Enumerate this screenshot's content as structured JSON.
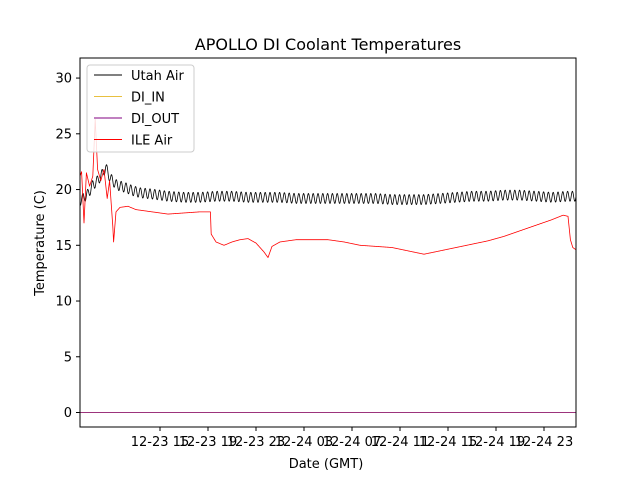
{
  "chart_data": {
    "type": "line",
    "title": "APOLLO DI Coolant Temperatures",
    "xlabel": "Date (GMT)",
    "ylabel": "Temperature (C)",
    "xlim": [
      9.5,
      40.5
    ],
    "ylim": [
      -1.3,
      31.8
    ],
    "x_units": "hours since 12-23 00:00 GMT",
    "x_ticks": [
      {
        "value": 14.5,
        "label": "12-23 15"
      },
      {
        "value": 17.5,
        "label": "12-23 19"
      },
      {
        "value": 20.5,
        "label": "12-23 23"
      },
      {
        "value": 23.5,
        "label": "12-24 03"
      },
      {
        "value": 26.5,
        "label": "12-24 07"
      },
      {
        "value": 29.5,
        "label": "12-24 11"
      },
      {
        "value": 32.5,
        "label": "12-24 15"
      },
      {
        "value": 35.5,
        "label": "12-24 19"
      },
      {
        "value": 38.5,
        "label": "12-24 23"
      }
    ],
    "y_ticks": [
      0,
      5,
      10,
      15,
      20,
      25,
      30
    ],
    "legend": {
      "position": "top-left"
    },
    "series": [
      {
        "name": "Utah Air",
        "color": "#000000",
        "oscillation": {
          "amplitude": 0.45,
          "period_hours": 0.3
        },
        "points": [
          [
            9.5,
            19.0
          ],
          [
            10.0,
            19.6
          ],
          [
            10.3,
            20.4
          ],
          [
            10.6,
            20.8
          ],
          [
            10.9,
            21.4
          ],
          [
            11.1,
            22.0
          ],
          [
            11.4,
            21.0
          ],
          [
            11.8,
            20.4
          ],
          [
            12.3,
            20.2
          ],
          [
            12.8,
            19.9
          ],
          [
            13.3,
            19.7
          ],
          [
            14.0,
            19.6
          ],
          [
            15.0,
            19.4
          ],
          [
            16.0,
            19.3
          ],
          [
            17.0,
            19.3
          ],
          [
            18.0,
            19.4
          ],
          [
            19.0,
            19.4
          ],
          [
            20.0,
            19.3
          ],
          [
            21.0,
            19.3
          ],
          [
            22.0,
            19.3
          ],
          [
            23.0,
            19.2
          ],
          [
            24.0,
            19.2
          ],
          [
            25.0,
            19.2
          ],
          [
            26.0,
            19.2
          ],
          [
            27.0,
            19.2
          ],
          [
            28.0,
            19.2
          ],
          [
            29.0,
            19.1
          ],
          [
            30.0,
            19.1
          ],
          [
            31.0,
            19.1
          ],
          [
            32.0,
            19.2
          ],
          [
            33.0,
            19.3
          ],
          [
            34.0,
            19.4
          ],
          [
            35.0,
            19.4
          ],
          [
            36.0,
            19.5
          ],
          [
            37.0,
            19.5
          ],
          [
            38.0,
            19.4
          ],
          [
            39.0,
            19.3
          ],
          [
            40.0,
            19.4
          ],
          [
            40.5,
            19.4
          ]
        ]
      },
      {
        "name": "DI_IN",
        "color": "#e8c040",
        "points": [
          [
            9.5,
            0.0
          ],
          [
            40.5,
            0.0
          ]
        ]
      },
      {
        "name": "DI_OUT",
        "color": "#800080",
        "points": [
          [
            9.5,
            0.0
          ],
          [
            40.5,
            0.0
          ]
        ]
      },
      {
        "name": "ILE Air",
        "color": "#ff0000",
        "points": [
          [
            9.5,
            21.2
          ],
          [
            9.6,
            21.6
          ],
          [
            9.75,
            17.0
          ],
          [
            9.9,
            21.5
          ],
          [
            10.1,
            20.3
          ],
          [
            10.3,
            21.2
          ],
          [
            10.45,
            26.3
          ],
          [
            10.6,
            21.8
          ],
          [
            10.8,
            20.8
          ],
          [
            11.0,
            21.8
          ],
          [
            11.2,
            19.2
          ],
          [
            11.35,
            20.8
          ],
          [
            11.55,
            16.7
          ],
          [
            11.6,
            15.3
          ],
          [
            11.75,
            18.0
          ],
          [
            12.0,
            18.4
          ],
          [
            12.5,
            18.5
          ],
          [
            13.0,
            18.2
          ],
          [
            14.0,
            18.0
          ],
          [
            15.0,
            17.8
          ],
          [
            16.0,
            17.9
          ],
          [
            17.0,
            18.0
          ],
          [
            17.65,
            18.0
          ],
          [
            17.7,
            16.0
          ],
          [
            18.0,
            15.3
          ],
          [
            18.5,
            15.0
          ],
          [
            19.0,
            15.3
          ],
          [
            19.5,
            15.5
          ],
          [
            20.0,
            15.6
          ],
          [
            20.5,
            15.2
          ],
          [
            21.0,
            14.4
          ],
          [
            21.25,
            13.9
          ],
          [
            21.5,
            14.9
          ],
          [
            22.0,
            15.3
          ],
          [
            23.0,
            15.5
          ],
          [
            24.0,
            15.5
          ],
          [
            25.0,
            15.5
          ],
          [
            26.0,
            15.3
          ],
          [
            27.0,
            15.0
          ],
          [
            28.0,
            14.9
          ],
          [
            29.0,
            14.8
          ],
          [
            30.0,
            14.5
          ],
          [
            31.0,
            14.2
          ],
          [
            32.0,
            14.5
          ],
          [
            33.0,
            14.8
          ],
          [
            34.0,
            15.1
          ],
          [
            35.0,
            15.4
          ],
          [
            36.0,
            15.8
          ],
          [
            37.0,
            16.3
          ],
          [
            38.0,
            16.8
          ],
          [
            39.0,
            17.3
          ],
          [
            39.7,
            17.7
          ],
          [
            40.0,
            17.6
          ],
          [
            40.15,
            15.5
          ],
          [
            40.3,
            14.8
          ],
          [
            40.5,
            14.6
          ]
        ]
      }
    ]
  }
}
